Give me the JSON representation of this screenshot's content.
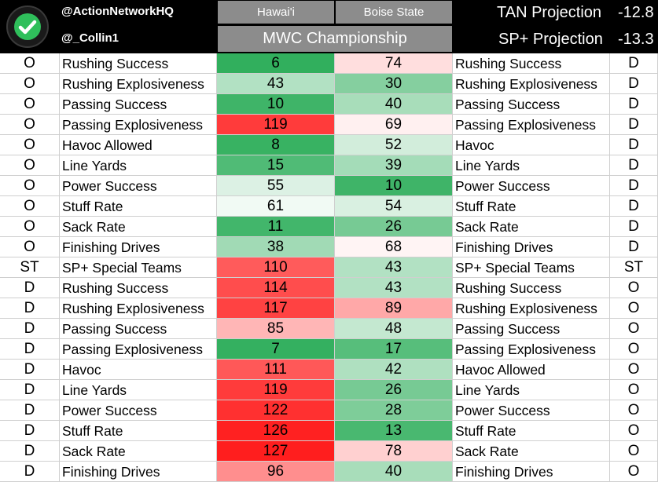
{
  "header": {
    "handle_primary": "@ActionNetworkHQ",
    "handle_secondary": "@_Collin1",
    "team1": "Hawai'i",
    "team2": "Boise State",
    "game_title": "MWC Championship",
    "projections": [
      {
        "label": "TAN Projection",
        "value": "-12.8"
      },
      {
        "label": "SP+ Projection",
        "value": "-13.3"
      }
    ]
  },
  "colors": {
    "header_bg": "#000000",
    "tab_bg": "#8c8c8c",
    "best_rank": "#1fa84f",
    "neutral_rank": "#ffffff",
    "worst_rank": "#ff1a1a"
  },
  "rows": [
    {
      "side_left": "O",
      "stat_left": "Rushing Success",
      "team1_rank": 6,
      "team2_rank": 74,
      "stat_right": "Rushing Success",
      "side_right": "D"
    },
    {
      "side_left": "O",
      "stat_left": "Rushing Explosiveness",
      "team1_rank": 43,
      "team2_rank": 30,
      "stat_right": "Rushing Explosiveness",
      "side_right": "D"
    },
    {
      "side_left": "O",
      "stat_left": "Passing Success",
      "team1_rank": 10,
      "team2_rank": 40,
      "stat_right": "Passing Success",
      "side_right": "D"
    },
    {
      "side_left": "O",
      "stat_left": "Passing Explosiveness",
      "team1_rank": 119,
      "team2_rank": 69,
      "stat_right": "Passing Explosiveness",
      "side_right": "D"
    },
    {
      "side_left": "O",
      "stat_left": "Havoc Allowed",
      "team1_rank": 8,
      "team2_rank": 52,
      "stat_right": "Havoc",
      "side_right": "D"
    },
    {
      "side_left": "O",
      "stat_left": "Line Yards",
      "team1_rank": 15,
      "team2_rank": 39,
      "stat_right": "Line Yards",
      "side_right": "D"
    },
    {
      "side_left": "O",
      "stat_left": "Power Success",
      "team1_rank": 55,
      "team2_rank": 10,
      "stat_right": "Power Success",
      "side_right": "D"
    },
    {
      "side_left": "O",
      "stat_left": "Stuff Rate",
      "team1_rank": 61,
      "team2_rank": 54,
      "stat_right": "Stuff Rate",
      "side_right": "D"
    },
    {
      "side_left": "O",
      "stat_left": "Sack Rate",
      "team1_rank": 11,
      "team2_rank": 26,
      "stat_right": "Sack Rate",
      "side_right": "D"
    },
    {
      "side_left": "O",
      "stat_left": "Finishing Drives",
      "team1_rank": 38,
      "team2_rank": 68,
      "stat_right": "Finishing Drives",
      "side_right": "D"
    },
    {
      "side_left": "ST",
      "stat_left": "SP+ Special Teams",
      "team1_rank": 110,
      "team2_rank": 43,
      "stat_right": "SP+ Special Teams",
      "side_right": "ST"
    },
    {
      "side_left": "D",
      "stat_left": "Rushing Success",
      "team1_rank": 114,
      "team2_rank": 43,
      "stat_right": "Rushing Success",
      "side_right": "O"
    },
    {
      "side_left": "D",
      "stat_left": "Rushing Explosiveness",
      "team1_rank": 117,
      "team2_rank": 89,
      "stat_right": "Rushing Explosiveness",
      "side_right": "O"
    },
    {
      "side_left": "D",
      "stat_left": "Passing Success",
      "team1_rank": 85,
      "team2_rank": 48,
      "stat_right": "Passing Success",
      "side_right": "O"
    },
    {
      "side_left": "D",
      "stat_left": "Passing Explosiveness",
      "team1_rank": 7,
      "team2_rank": 17,
      "stat_right": "Passing Explosiveness",
      "side_right": "O"
    },
    {
      "side_left": "D",
      "stat_left": "Havoc",
      "team1_rank": 111,
      "team2_rank": 42,
      "stat_right": "Havoc Allowed",
      "side_right": "O"
    },
    {
      "side_left": "D",
      "stat_left": "Line Yards",
      "team1_rank": 119,
      "team2_rank": 26,
      "stat_right": "Line Yards",
      "side_right": "O"
    },
    {
      "side_left": "D",
      "stat_left": "Power Success",
      "team1_rank": 122,
      "team2_rank": 28,
      "stat_right": "Power Success",
      "side_right": "O"
    },
    {
      "side_left": "D",
      "stat_left": "Stuff Rate",
      "team1_rank": 126,
      "team2_rank": 13,
      "stat_right": "Stuff Rate",
      "side_right": "O"
    },
    {
      "side_left": "D",
      "stat_left": "Sack Rate",
      "team1_rank": 127,
      "team2_rank": 78,
      "stat_right": "Sack Rate",
      "side_right": "O"
    },
    {
      "side_left": "D",
      "stat_left": "Finishing Drives",
      "team1_rank": 96,
      "team2_rank": 40,
      "stat_right": "Finishing Drives",
      "side_right": "O"
    }
  ]
}
